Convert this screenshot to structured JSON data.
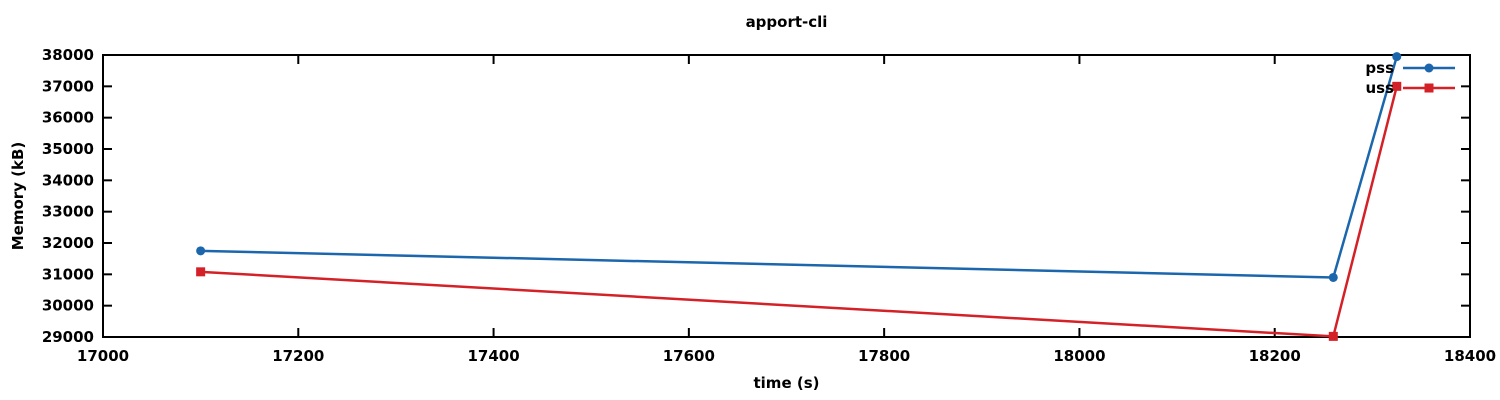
{
  "chart_data": {
    "type": "line",
    "title": "apport-cli",
    "xlabel": "time (s)",
    "ylabel": "Memory (kB)",
    "xlim": [
      17000,
      18400
    ],
    "ylim": [
      29000,
      38000
    ],
    "xtick_step": 200,
    "ytick_step": 1000,
    "grid": false,
    "legend_position": "top-right",
    "border_color": "#000000",
    "background_color": "#ffffff",
    "series": [
      {
        "name": "pss",
        "color": "#1b66ad",
        "marker": "circle",
        "points": [
          [
            17100,
            31750
          ],
          [
            18260,
            30900
          ],
          [
            18325,
            37950
          ]
        ]
      },
      {
        "name": "uss",
        "color": "#d42127",
        "marker": "square",
        "points": [
          [
            17100,
            31080
          ],
          [
            18260,
            29020
          ],
          [
            18325,
            37000
          ]
        ]
      }
    ]
  }
}
